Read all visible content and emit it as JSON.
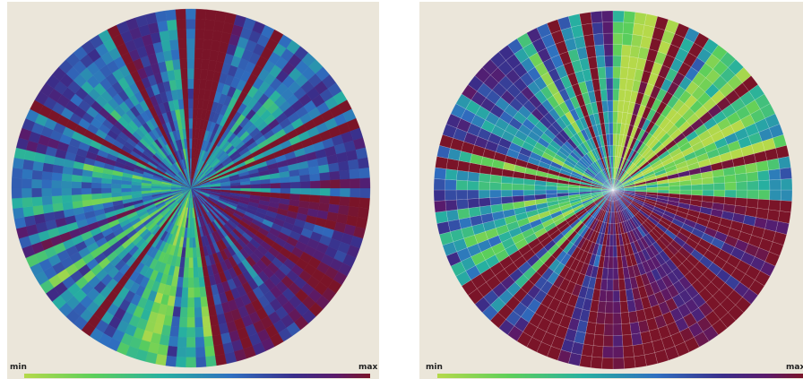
{
  "panels": [
    {
      "colorbar": {
        "min_label": "min",
        "max_label": "max"
      }
    },
    {
      "colorbar": {
        "min_label": "min",
        "max_label": "max"
      }
    }
  ]
}
